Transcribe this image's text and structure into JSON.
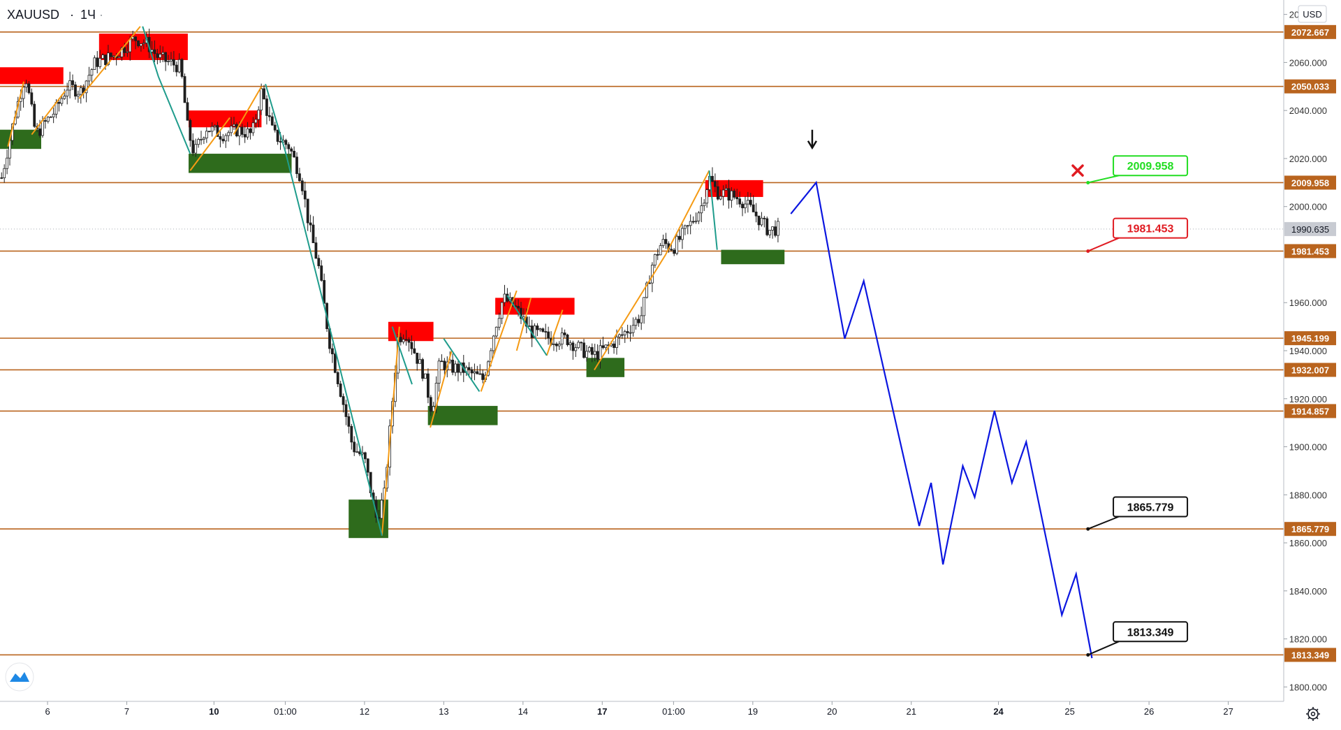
{
  "header": {
    "symbol": "XAUUSD",
    "timeframe": "1Ч",
    "dot": "·"
  },
  "currency": "USD",
  "icons": {
    "logo": "tradingview-logo-icon",
    "settings": "gear-icon",
    "signal": "down-arrow-icon",
    "cancel": "red-cross-icon"
  },
  "colors": {
    "level": "#b9641e",
    "supply": "#ff0000",
    "demand": "#2e6b1c",
    "up_wave": "#f59a13",
    "down_wave": "#1f9c8c",
    "forecast": "#0b16e0",
    "candle": "#1e1e1e",
    "axis_text": "#333333",
    "callout_green": "#22dd22",
    "callout_red": "#e01b22",
    "current_price_bg": "#c8cbd2"
  },
  "chart_data": {
    "type": "candlestick",
    "symbol": "XAUUSD",
    "ylim": [
      1794,
      2086
    ],
    "y_ticks": [
      2080,
      2060,
      2040,
      2020,
      2000,
      1960,
      1940,
      1920,
      1900,
      1880,
      1860,
      1840,
      1820,
      1800
    ],
    "y_tick_labels": [
      "2080.000",
      "2060.000",
      "2040.000",
      "2020.000",
      "2000.000",
      "1960.000",
      "1940.000",
      "1920.000",
      "1900.000",
      "1880.000",
      "1860.000",
      "1840.000",
      "1820.000",
      "1800.000"
    ],
    "x_ticks": [
      {
        "t": 5.2,
        "label": "6",
        "bold": false
      },
      {
        "t": 6.2,
        "label": "7",
        "bold": false
      },
      {
        "t": 7.3,
        "label": "10",
        "bold": true
      },
      {
        "t": 8.2,
        "label": "01:00",
        "bold": false
      },
      {
        "t": 9.2,
        "label": "12",
        "bold": false
      },
      {
        "t": 10.2,
        "label": "13",
        "bold": false
      },
      {
        "t": 11.2,
        "label": "14",
        "bold": false
      },
      {
        "t": 12.2,
        "label": "17",
        "bold": true
      },
      {
        "t": 13.1,
        "label": "01:00",
        "bold": false
      },
      {
        "t": 14.1,
        "label": "19",
        "bold": false
      },
      {
        "t": 15.1,
        "label": "20",
        "bold": false
      },
      {
        "t": 16.1,
        "label": "21",
        "bold": false
      },
      {
        "t": 17.2,
        "label": "24",
        "bold": true
      },
      {
        "t": 18.1,
        "label": "25",
        "bold": false
      },
      {
        "t": 19.1,
        "label": "26",
        "bold": false
      },
      {
        "t": 20.1,
        "label": "27",
        "bold": false
      }
    ],
    "horizontal_levels": [
      {
        "price": 2072.667,
        "label": "2072.667"
      },
      {
        "price": 2050.033,
        "label": "2050.033"
      },
      {
        "price": 2009.958,
        "label": "2009.958"
      },
      {
        "price": 1981.453,
        "label": "1981.453"
      },
      {
        "price": 1945.199,
        "label": "1945.199"
      },
      {
        "price": 1932.007,
        "label": "1932.007"
      },
      {
        "price": 1914.857,
        "label": "1914.857"
      },
      {
        "price": 1865.779,
        "label": "1865.779"
      },
      {
        "price": 1813.349,
        "label": "1813.349"
      }
    ],
    "current_price": {
      "price": 1990.635,
      "label": "1990.635"
    },
    "supply_zones": [
      {
        "t0": 4.6,
        "t1": 5.4,
        "p0": 2051,
        "p1": 2058
      },
      {
        "t0": 5.85,
        "t1": 6.97,
        "p0": 2061,
        "p1": 2072
      },
      {
        "t0": 6.98,
        "t1": 7.9,
        "p0": 2033,
        "p1": 2040
      },
      {
        "t0": 9.5,
        "t1": 10.07,
        "p0": 1944,
        "p1": 1952
      },
      {
        "t0": 10.85,
        "t1": 11.85,
        "p0": 1955,
        "p1": 1962
      },
      {
        "t0": 13.5,
        "t1": 14.23,
        "p0": 2004,
        "p1": 2011
      }
    ],
    "demand_zones": [
      {
        "t0": 4.6,
        "t1": 5.12,
        "p0": 2024,
        "p1": 2032
      },
      {
        "t0": 6.98,
        "t1": 8.28,
        "p0": 2014,
        "p1": 2022
      },
      {
        "t0": 9.0,
        "t1": 9.5,
        "p0": 1862,
        "p1": 1878
      },
      {
        "t0": 10.0,
        "t1": 10.88,
        "p0": 1909,
        "p1": 1917
      },
      {
        "t0": 12.0,
        "t1": 12.48,
        "p0": 1929,
        "p1": 1937
      },
      {
        "t0": 13.7,
        "t1": 14.5,
        "p0": 1976,
        "p1": 1982
      }
    ],
    "up_wave_segments": [
      [
        [
          4.7,
          2025
        ],
        [
          4.9,
          2052
        ]
      ],
      [
        [
          5.0,
          2030
        ],
        [
          5.42,
          2048
        ]
      ],
      [
        [
          5.6,
          2045
        ],
        [
          6.0,
          2061
        ]
      ],
      [
        [
          6.05,
          2062
        ],
        [
          6.37,
          2075
        ]
      ],
      [
        [
          7.0,
          2015
        ],
        [
          7.5,
          2037
        ]
      ],
      [
        [
          7.55,
          2030
        ],
        [
          7.9,
          2050
        ]
      ],
      [
        [
          9.42,
          1863
        ],
        [
          9.64,
          1950
        ]
      ],
      [
        [
          10.03,
          1908
        ],
        [
          10.3,
          1940
        ]
      ],
      [
        [
          10.67,
          1923
        ],
        [
          11.12,
          1965
        ]
      ],
      [
        [
          11.12,
          1940
        ],
        [
          11.3,
          1962
        ]
      ],
      [
        [
          11.5,
          1938
        ],
        [
          11.7,
          1957
        ]
      ],
      [
        [
          12.1,
          1932
        ],
        [
          13.0,
          1980
        ]
      ],
      [
        [
          13.0,
          1980
        ],
        [
          13.55,
          2015
        ]
      ]
    ],
    "down_wave_segments": [
      [
        [
          6.4,
          2075
        ],
        [
          6.6,
          2054
        ]
      ],
      [
        [
          6.6,
          2054
        ],
        [
          7.0,
          2022
        ]
      ],
      [
        [
          7.95,
          2051
        ],
        [
          8.2,
          2023
        ]
      ],
      [
        [
          8.2,
          2023
        ],
        [
          9.42,
          1863
        ]
      ],
      [
        [
          9.55,
          1950
        ],
        [
          9.8,
          1926
        ]
      ],
      [
        [
          10.2,
          1945
        ],
        [
          10.65,
          1923
        ]
      ],
      [
        [
          11.0,
          1963
        ],
        [
          11.5,
          1938
        ]
      ],
      [
        [
          13.55,
          2015
        ],
        [
          13.65,
          1982
        ]
      ]
    ],
    "forecast_path": [
      [
        14.58,
        1997
      ],
      [
        14.9,
        2010
      ],
      [
        15.26,
        1945
      ],
      [
        15.5,
        1969
      ],
      [
        16.2,
        1867
      ],
      [
        16.35,
        1885
      ],
      [
        16.5,
        1851
      ],
      [
        16.75,
        1892
      ],
      [
        16.9,
        1879
      ],
      [
        17.15,
        1915
      ],
      [
        17.37,
        1885
      ],
      [
        17.55,
        1902
      ],
      [
        18.0,
        1830
      ],
      [
        18.18,
        1847
      ],
      [
        18.38,
        1812
      ]
    ],
    "signal_arrow": {
      "t": 14.85,
      "price": 2025
    },
    "cancel_mark": {
      "t": 18.2,
      "price": 2015
    },
    "callouts": [
      {
        "label": "2009.958",
        "style": "green",
        "anchor": [
          18.33,
          2009.958
        ],
        "box_t": 18.65,
        "box_p": 2017
      },
      {
        "label": "1981.453",
        "style": "red",
        "anchor": [
          18.33,
          1981.453
        ],
        "box_t": 18.65,
        "box_p": 1991
      },
      {
        "label": "1865.779",
        "style": "black",
        "anchor": [
          18.33,
          1865.779
        ],
        "box_t": 18.65,
        "box_p": 1875
      },
      {
        "label": "1813.349",
        "style": "black",
        "anchor": [
          18.33,
          1813.349
        ],
        "box_t": 18.65,
        "box_p": 1823
      }
    ],
    "path_points": [
      [
        4.62,
        2012
      ],
      [
        4.8,
        2040
      ],
      [
        4.92,
        2055
      ],
      [
        5.05,
        2030
      ],
      [
        5.3,
        2040
      ],
      [
        5.45,
        2050
      ],
      [
        5.62,
        2048
      ],
      [
        5.8,
        2060
      ],
      [
        6.05,
        2063
      ],
      [
        6.3,
        2070
      ],
      [
        6.45,
        2068
      ],
      [
        6.6,
        2062
      ],
      [
        6.88,
        2058
      ],
      [
        6.97,
        2032
      ],
      [
        7.05,
        2022
      ],
      [
        7.2,
        2033
      ],
      [
        7.4,
        2030
      ],
      [
        7.6,
        2032
      ],
      [
        7.78,
        2030
      ],
      [
        7.9,
        2048
      ],
      [
        8.05,
        2030
      ],
      [
        8.25,
        2025
      ],
      [
        8.4,
        2012
      ],
      [
        8.5,
        1992
      ],
      [
        8.62,
        1975
      ],
      [
        8.75,
        1945
      ],
      [
        8.92,
        1920
      ],
      [
        9.05,
        1900
      ],
      [
        9.2,
        1895
      ],
      [
        9.35,
        1870
      ],
      [
        9.45,
        1880
      ],
      [
        9.55,
        1918
      ],
      [
        9.62,
        1945
      ],
      [
        9.72,
        1948
      ],
      [
        9.8,
        1942
      ],
      [
        9.95,
        1930
      ],
      [
        10.05,
        1915
      ],
      [
        10.15,
        1935
      ],
      [
        10.3,
        1933
      ],
      [
        10.45,
        1932
      ],
      [
        10.7,
        1928
      ],
      [
        10.85,
        1950
      ],
      [
        10.95,
        1962
      ],
      [
        11.1,
        1958
      ],
      [
        11.3,
        1948
      ],
      [
        11.55,
        1945
      ],
      [
        11.75,
        1945
      ],
      [
        11.95,
        1940
      ],
      [
        12.1,
        1938
      ],
      [
        12.3,
        1942
      ],
      [
        12.5,
        1948
      ],
      [
        12.7,
        1955
      ],
      [
        12.82,
        1975
      ],
      [
        12.95,
        1985
      ],
      [
        13.1,
        1983
      ],
      [
        13.3,
        1992
      ],
      [
        13.45,
        2000
      ],
      [
        13.55,
        2012
      ],
      [
        13.65,
        2006
      ],
      [
        13.8,
        2005
      ],
      [
        13.95,
        2003
      ],
      [
        14.1,
        1998
      ],
      [
        14.3,
        1990
      ],
      [
        14.42,
        1991
      ]
    ]
  }
}
